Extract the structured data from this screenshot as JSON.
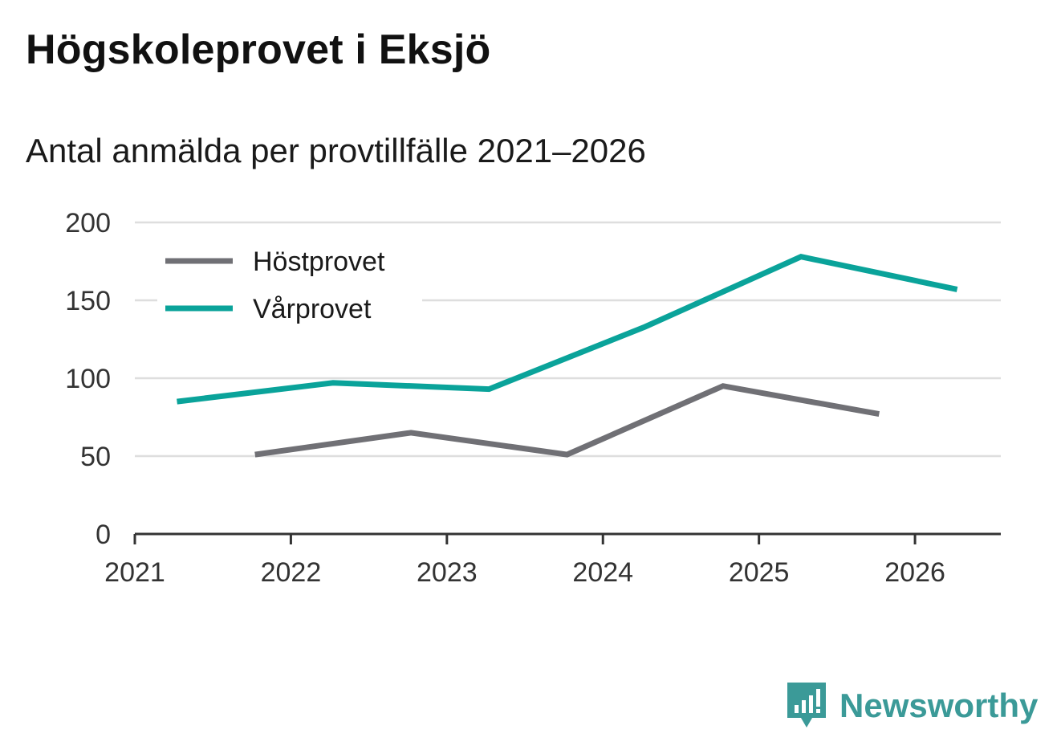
{
  "chart_data": {
    "type": "line",
    "title": "Högskoleprovet i Eksjö",
    "subtitle": "Antal anmälda per provtillfälle 2021–2026",
    "xlabel": "",
    "ylabel": "",
    "xlim": [
      2021,
      2026.55
    ],
    "ylim": [
      0,
      200
    ],
    "x_ticks": [
      "2021",
      "2022",
      "2023",
      "2024",
      "2025",
      "2026"
    ],
    "y_ticks": [
      "0",
      "50",
      "100",
      "150",
      "200"
    ],
    "grid": true,
    "legend_position": "top-left",
    "series": [
      {
        "name": "Höstprovet",
        "color": "#707075",
        "x": [
          2021.77,
          2022.77,
          2023.77,
          2024.77,
          2025.77
        ],
        "y": [
          51,
          65,
          51,
          95,
          77
        ]
      },
      {
        "name": "Vårprovet",
        "color": "#0aa39a",
        "x": [
          2021.27,
          2022.27,
          2023.27,
          2024.27,
          2025.27,
          2026.27
        ],
        "y": [
          85,
          97,
          93,
          133,
          178,
          157
        ]
      }
    ]
  },
  "brand": {
    "name": "Newsworthy",
    "color": "#3b9a98",
    "icon": "newsworthy-logo-icon"
  }
}
